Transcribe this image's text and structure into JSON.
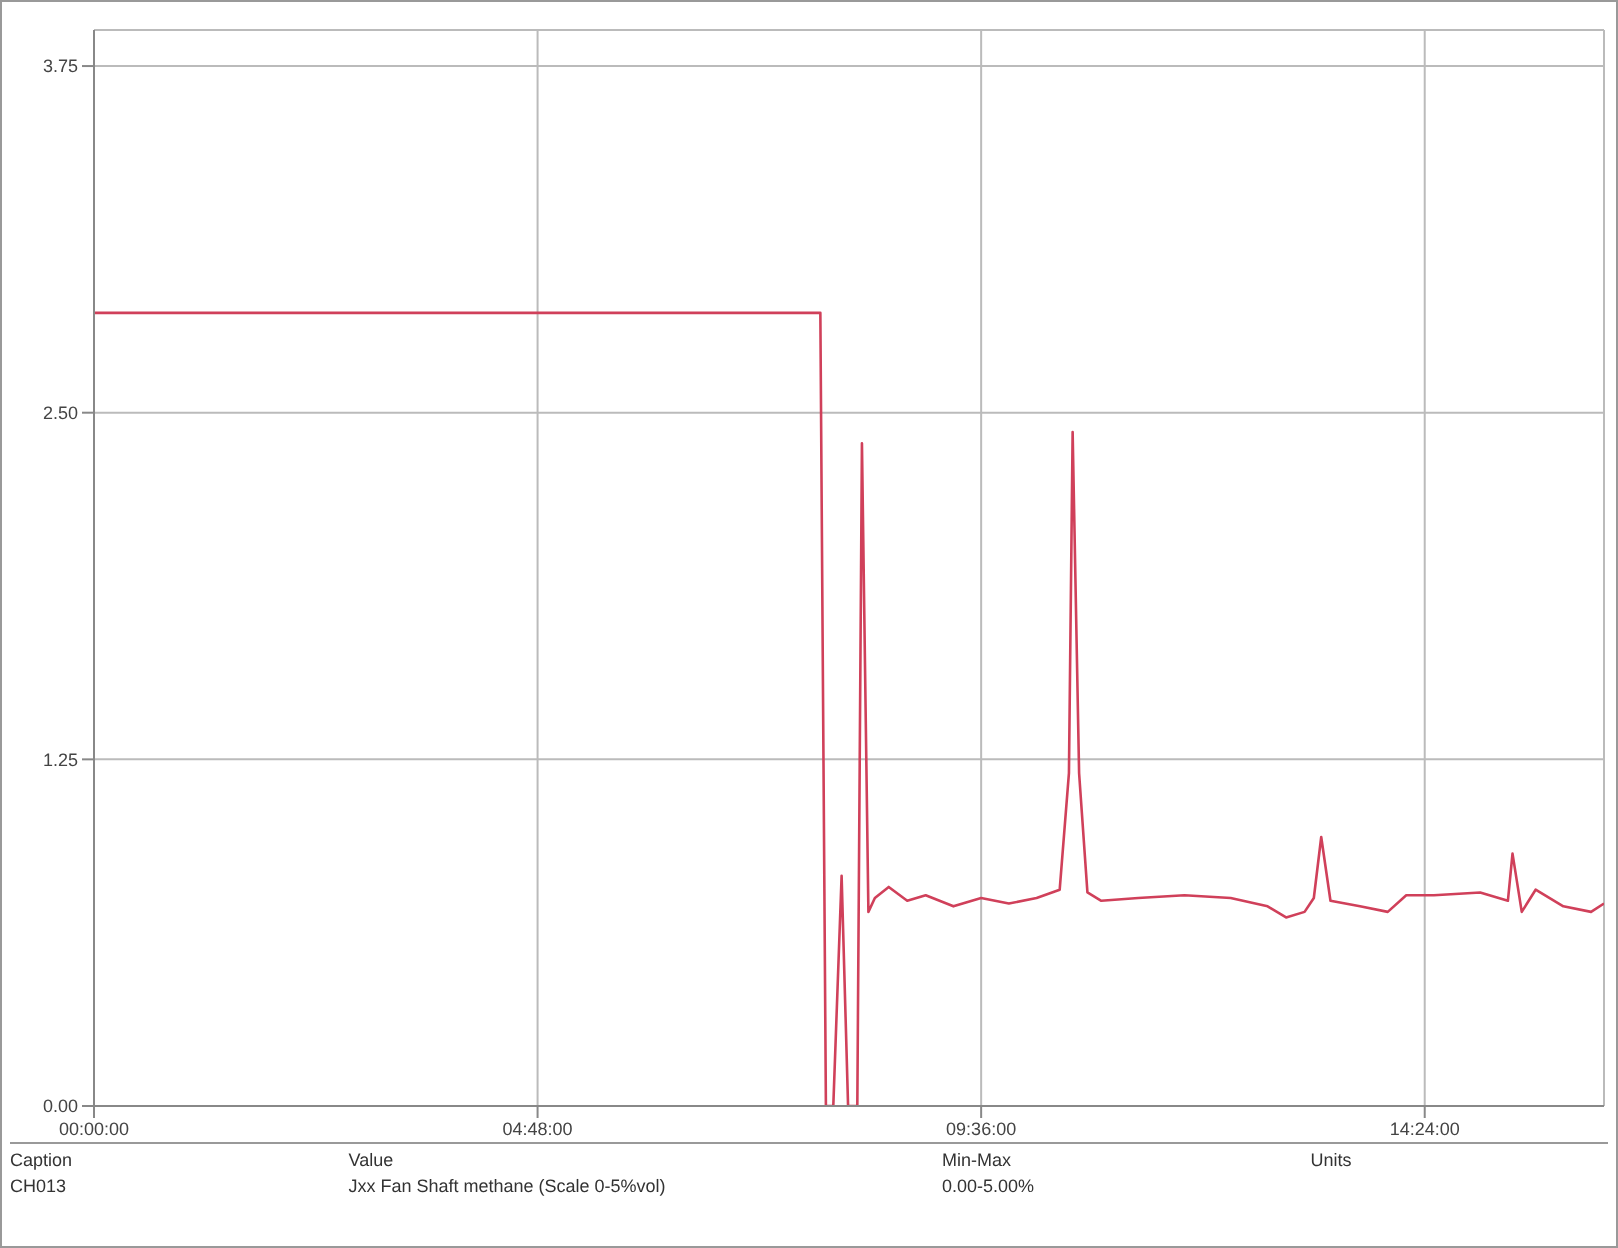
{
  "chart_data": {
    "type": "line",
    "x": [
      0,
      7.86,
      7.92,
      8.0,
      8.09,
      8.16,
      8.26,
      8.31,
      8.38,
      8.45,
      8.6,
      8.8,
      9.0,
      9.3,
      9.6,
      9.9,
      10.2,
      10.45,
      10.55,
      10.59,
      10.66,
      10.75,
      10.9,
      11.3,
      11.8,
      12.3,
      12.7,
      12.9,
      13.1,
      13.2,
      13.28,
      13.38,
      13.7,
      14.0,
      14.2,
      14.5,
      15.0,
      15.3,
      15.35,
      15.45,
      15.6,
      15.9,
      16.2,
      16.34
    ],
    "series": [
      {
        "color": "#d0405a",
        "values": [
          2.86,
          2.86,
          0,
          0,
          0.83,
          0,
          0,
          2.39,
          0.7,
          0.75,
          0.79,
          0.74,
          0.76,
          0.72,
          0.75,
          0.73,
          0.75,
          0.78,
          1.2,
          2.43,
          1.2,
          0.77,
          0.74,
          0.75,
          0.76,
          0.75,
          0.72,
          0.68,
          0.7,
          0.75,
          0.97,
          0.74,
          0.72,
          0.7,
          0.76,
          0.76,
          0.77,
          0.74,
          0.91,
          0.7,
          0.78,
          0.72,
          0.7,
          0.73
        ]
      }
    ],
    "xlim": [
      0,
      16.34
    ],
    "xticks": [
      {
        "value": 0,
        "label": "00:00:00"
      },
      {
        "value": 4.8,
        "label": "04:48:00"
      },
      {
        "value": 9.6,
        "label": "09:36:00"
      },
      {
        "value": 14.4,
        "label": "14:24:00"
      }
    ],
    "ylim": [
      0,
      3.88
    ],
    "yticks": [
      {
        "value": 0,
        "label": "0.00"
      },
      {
        "value": 1.25,
        "label": "1.25"
      },
      {
        "value": 2.5,
        "label": "2.50"
      },
      {
        "value": 3.75,
        "label": "3.75"
      }
    ],
    "grid": true,
    "marker": "none",
    "line_style": "solid",
    "legend": false,
    "annotations": [
      "Caption",
      "Value",
      "Min-Max",
      "Units",
      "CH013",
      "Jxx Fan Shaft methane (Scale 0-5%vol)",
      "0.00-5.00%"
    ]
  }
}
